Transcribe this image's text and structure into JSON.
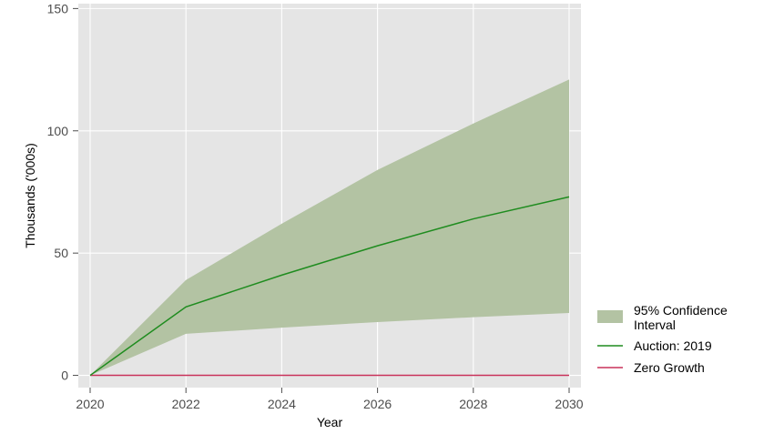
{
  "chart_data": {
    "type": "line",
    "title": "",
    "xlabel": "Year",
    "ylabel": "Thousands ('000s)",
    "xlim": [
      2020,
      2030
    ],
    "ylim": [
      -5,
      152
    ],
    "x_ticks": [
      "2020",
      "2022",
      "2024",
      "2026",
      "2028",
      "2030"
    ],
    "y_ticks": [
      "0",
      "50",
      "100",
      "150"
    ],
    "grid": true,
    "background_color": "#e5e5e5",
    "legend_position": "bottom-right",
    "x": [
      2020,
      2022,
      2024,
      2026,
      2028,
      2030
    ],
    "confidence_interval": {
      "name": "95% Confidence Interval",
      "color": "#b3c3a3",
      "lower": [
        0,
        17,
        19.5,
        21.8,
        23.8,
        25.5
      ],
      "upper": [
        0,
        39,
        62,
        84,
        103,
        121
      ]
    },
    "series": [
      {
        "name": "Auction: 2019",
        "color": "#1f8c1f",
        "values": [
          0,
          28,
          41,
          53,
          64,
          73
        ]
      },
      {
        "name": "Zero Growth",
        "color": "#c8325a",
        "values": [
          0,
          0,
          0,
          0,
          0,
          0
        ]
      }
    ],
    "legend": [
      {
        "label_lines": [
          "95% Confidence",
          "Interval"
        ],
        "kind": "fill",
        "color": "#b3c3a3"
      },
      {
        "label_lines": [
          "Auction: 2019"
        ],
        "kind": "line",
        "color": "#1f8c1f"
      },
      {
        "label_lines": [
          "Zero Growth"
        ],
        "kind": "line",
        "color": "#c8325a"
      }
    ]
  }
}
